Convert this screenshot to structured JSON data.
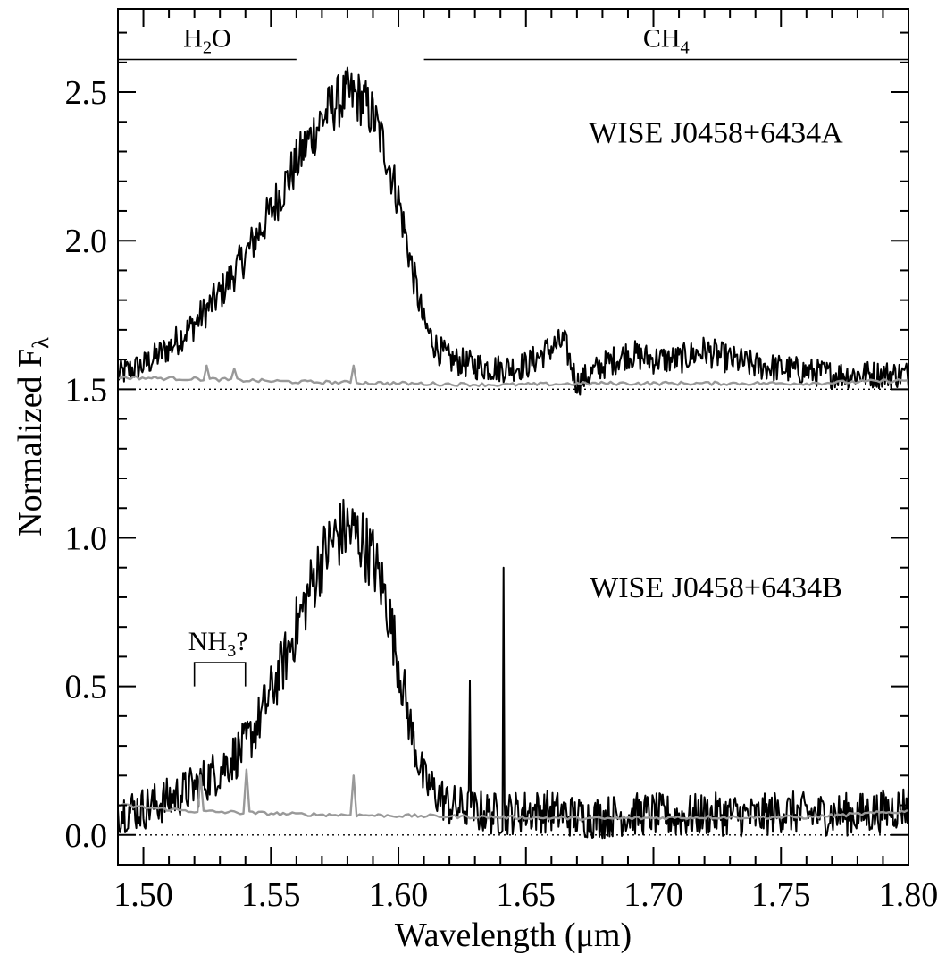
{
  "chart_data": {
    "type": "line",
    "xlabel": "Wavelength (μm)",
    "ylabel": {
      "main": "Normalized F",
      "sub": "λ"
    },
    "xlim": [
      1.49,
      1.8
    ],
    "ylim": [
      -0.1,
      2.78
    ],
    "xticks": [
      {
        "value": 1.5,
        "label": "1.50"
      },
      {
        "value": 1.55,
        "label": "1.55"
      },
      {
        "value": 1.6,
        "label": "1.60"
      },
      {
        "value": 1.65,
        "label": "1.65"
      },
      {
        "value": 1.7,
        "label": "1.70"
      },
      {
        "value": 1.75,
        "label": "1.75"
      },
      {
        "value": 1.8,
        "label": "1.80"
      }
    ],
    "yticks": [
      {
        "value": 0.0,
        "label": "0.0"
      },
      {
        "value": 0.5,
        "label": "0.5"
      },
      {
        "value": 1.0,
        "label": "1.0"
      },
      {
        "value": 1.5,
        "label": "1.5"
      },
      {
        "value": 2.0,
        "label": "2.0"
      },
      {
        "value": 2.5,
        "label": "2.5"
      }
    ],
    "baselines": [
      1.5,
      0.0
    ],
    "series": [
      {
        "name": "WISE J0458+6434A",
        "color": "#000000",
        "offset": 1.5,
        "x": [
          1.49,
          1.5,
          1.51,
          1.52,
          1.53,
          1.54,
          1.55,
          1.555,
          1.56,
          1.565,
          1.57,
          1.575,
          1.58,
          1.585,
          1.59,
          1.595,
          1.6,
          1.605,
          1.61,
          1.615,
          1.62,
          1.63,
          1.64,
          1.65,
          1.66,
          1.665,
          1.67,
          1.68,
          1.69,
          1.7,
          1.71,
          1.72,
          1.73,
          1.74,
          1.75,
          1.76,
          1.77,
          1.78,
          1.79,
          1.8
        ],
        "y": [
          1.55,
          1.58,
          1.64,
          1.72,
          1.82,
          1.95,
          2.1,
          2.18,
          2.26,
          2.34,
          2.41,
          2.46,
          2.49,
          2.48,
          2.42,
          2.3,
          2.14,
          1.92,
          1.72,
          1.64,
          1.6,
          1.58,
          1.57,
          1.58,
          1.64,
          1.66,
          1.52,
          1.58,
          1.62,
          1.6,
          1.6,
          1.63,
          1.6,
          1.58,
          1.57,
          1.56,
          1.55,
          1.55,
          1.55,
          1.55
        ]
      },
      {
        "name": "WISE J0458+6434B",
        "color": "#000000",
        "offset": 0.0,
        "x": [
          1.49,
          1.5,
          1.51,
          1.52,
          1.53,
          1.54,
          1.545,
          1.55,
          1.555,
          1.56,
          1.565,
          1.57,
          1.575,
          1.58,
          1.585,
          1.59,
          1.595,
          1.6,
          1.605,
          1.61,
          1.62,
          1.63,
          1.64,
          1.65,
          1.66,
          1.67,
          1.68,
          1.69,
          1.7,
          1.71,
          1.72,
          1.73,
          1.74,
          1.75,
          1.76,
          1.77,
          1.78,
          1.79,
          1.8
        ],
        "y": [
          0.08,
          0.09,
          0.12,
          0.16,
          0.22,
          0.3,
          0.38,
          0.48,
          0.58,
          0.7,
          0.82,
          0.93,
          1.0,
          1.03,
          1.0,
          0.93,
          0.8,
          0.58,
          0.35,
          0.18,
          0.1,
          0.08,
          0.07,
          0.08,
          0.08,
          0.06,
          0.06,
          0.07,
          0.07,
          0.06,
          0.07,
          0.07,
          0.06,
          0.08,
          0.07,
          0.07,
          0.07,
          0.08,
          0.1
        ],
        "spikes": [
          {
            "x": 1.641,
            "y": 0.9
          },
          {
            "x": 1.628,
            "y": 0.52
          }
        ]
      },
      {
        "name": "",
        "color": "#999999",
        "offset": 1.5,
        "x": [
          1.49,
          1.52,
          1.56,
          1.6,
          1.64,
          1.68,
          1.72,
          1.76,
          1.8
        ],
        "y": [
          1.54,
          1.535,
          1.525,
          1.52,
          1.515,
          1.52,
          1.52,
          1.52,
          1.53
        ],
        "spikes": [
          {
            "x": 1.525,
            "y": 1.58
          },
          {
            "x": 1.536,
            "y": 1.57
          },
          {
            "x": 1.583,
            "y": 1.58
          }
        ]
      },
      {
        "name": "",
        "color": "#999999",
        "offset": 0.0,
        "x": [
          1.49,
          1.52,
          1.56,
          1.6,
          1.64,
          1.68,
          1.72,
          1.76,
          1.8
        ],
        "y": [
          0.1,
          0.08,
          0.07,
          0.065,
          0.06,
          0.055,
          0.06,
          0.06,
          0.08
        ],
        "spikes": [
          {
            "x": 1.522,
            "y": 0.2
          },
          {
            "x": 1.54,
            "y": 0.22
          },
          {
            "x": 1.582,
            "y": 0.2
          }
        ]
      }
    ],
    "bands": [
      {
        "label_main": "H",
        "label_sub": "2",
        "label_tail": "O",
        "x_start": 1.49,
        "x_end": 1.56,
        "y": 2.61,
        "label_x": 1.525
      },
      {
        "label_main": "CH",
        "label_sub": "4",
        "label_tail": "",
        "x_start": 1.61,
        "x_end": 1.8,
        "y": 2.61,
        "label_x": 1.705
      }
    ],
    "annotations": [
      {
        "main": "NH",
        "sub": "3",
        "tail": "?",
        "x": 1.53,
        "y": 0.53,
        "bracket_start": 1.52,
        "bracket_end": 1.54,
        "bracket_y": 0.58,
        "bracket_low": 0.5
      }
    ],
    "series_labels": [
      {
        "text": "WISE J0458+6434A",
        "x": 1.7245,
        "y": 2.33
      },
      {
        "text": "WISE J0458+6434B",
        "x": 1.7245,
        "y": 0.8
      }
    ]
  }
}
